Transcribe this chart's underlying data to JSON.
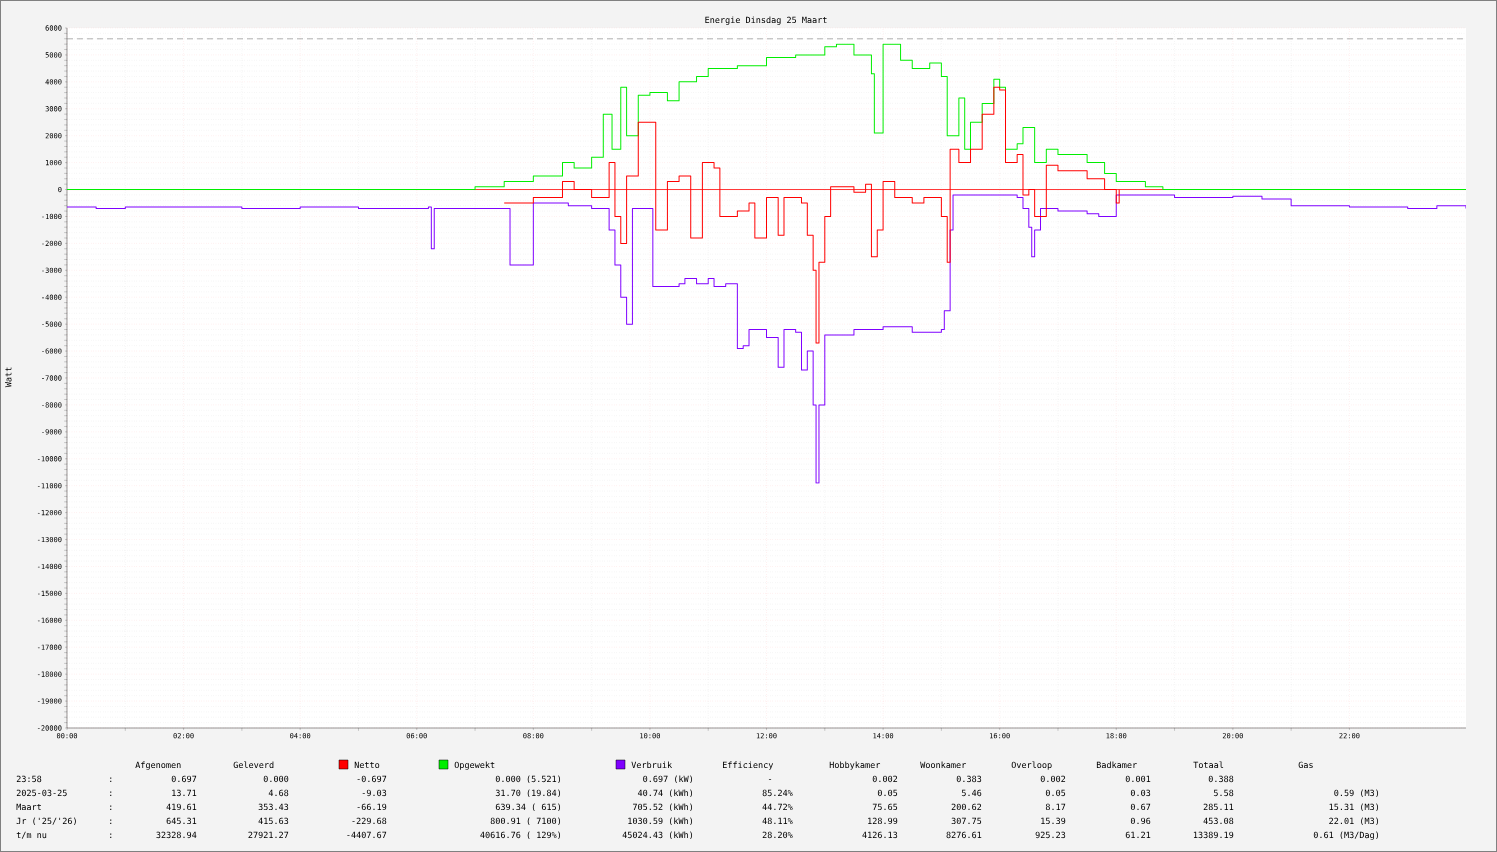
{
  "chart_data": {
    "type": "step",
    "title": "Energie Dinsdag   25 Maart",
    "ylabel": "Watt",
    "xlim": [
      0,
      24
    ],
    "ylim": [
      -20000,
      6000
    ],
    "xticks": [
      {
        "value": 0,
        "label": "00:00"
      },
      {
        "value": 2,
        "label": "02:00"
      },
      {
        "value": 4,
        "label": "04:00"
      },
      {
        "value": 6,
        "label": "06:00"
      },
      {
        "value": 8,
        "label": "08:00"
      },
      {
        "value": 10,
        "label": "10:00"
      },
      {
        "value": 12,
        "label": "12:00"
      },
      {
        "value": 14,
        "label": "14:00"
      },
      {
        "value": 16,
        "label": "16:00"
      },
      {
        "value": 18,
        "label": "18:00"
      },
      {
        "value": 20,
        "label": "20:00"
      },
      {
        "value": 22,
        "label": "22:00"
      }
    ],
    "yticks": [
      -20000,
      -19000,
      -18000,
      -17000,
      -16000,
      -15000,
      -14000,
      -13000,
      -12000,
      -11000,
      -10000,
      -9000,
      -8000,
      -7000,
      -6000,
      -5000,
      -4000,
      -3000,
      -2000,
      -1000,
      0,
      1000,
      2000,
      3000,
      4000,
      5000,
      6000
    ],
    "grid": true,
    "legend": "bottom",
    "ref_lines": [
      {
        "axis": "y",
        "value": 5600,
        "color": "#888888",
        "line_style": "dashed"
      },
      {
        "axis": "y",
        "value": 0,
        "color": "#ff0000",
        "line_style": "solid"
      }
    ],
    "series": [
      {
        "name": "Netto",
        "color": "#ff0000",
        "x": [
          7.5,
          8.0,
          8.5,
          8.7,
          9.0,
          9.3,
          9.4,
          9.5,
          9.6,
          9.8,
          10.0,
          10.1,
          10.3,
          10.5,
          10.7,
          10.9,
          11.1,
          11.2,
          11.5,
          11.7,
          11.8,
          12.0,
          12.2,
          12.3,
          12.6,
          12.7,
          12.8,
          12.85,
          12.9,
          13.0,
          13.1,
          13.5,
          13.7,
          13.8,
          13.9,
          14.0,
          14.2,
          14.5,
          14.7,
          15.0,
          15.1,
          15.15,
          15.3,
          15.5,
          15.7,
          15.9,
          16.0,
          16.1,
          16.3,
          16.4,
          16.5,
          16.6,
          16.8,
          17.0,
          17.5,
          17.8,
          18.0,
          18.05
        ],
        "values": [
          -500,
          -300,
          300,
          0,
          -300,
          1000,
          -1000,
          -2000,
          500,
          2500,
          2500,
          -1500,
          300,
          500,
          -1800,
          1000,
          800,
          -1000,
          -800,
          -500,
          -1800,
          -300,
          -1700,
          -300,
          -500,
          -1700,
          -3000,
          -5700,
          -2700,
          -1000,
          100,
          -100,
          200,
          -2500,
          -1500,
          300,
          -300,
          -500,
          -300,
          -1000,
          -2700,
          1500,
          1000,
          1500,
          2800,
          3800,
          3700,
          1000,
          1300,
          -200,
          0,
          -1000,
          900,
          700,
          400,
          0,
          -500,
          0
        ]
      },
      {
        "name": "Opgewekt",
        "color": "#00ee00",
        "x": [
          0,
          6.8,
          7.0,
          7.5,
          8.0,
          8.5,
          8.7,
          9.0,
          9.2,
          9.35,
          9.5,
          9.6,
          9.8,
          10.0,
          10.3,
          10.5,
          10.8,
          11.0,
          11.5,
          12.0,
          12.5,
          13.0,
          13.2,
          13.5,
          13.8,
          13.85,
          14.0,
          14.3,
          14.5,
          14.8,
          15.0,
          15.1,
          15.3,
          15.4,
          15.5,
          15.7,
          15.9,
          16.0,
          16.1,
          16.3,
          16.4,
          16.6,
          16.8,
          17.0,
          17.5,
          17.8,
          18.0,
          18.5,
          18.8,
          24
        ],
        "values": [
          0,
          0,
          100,
          300,
          500,
          1000,
          800,
          1200,
          2800,
          1500,
          3800,
          2000,
          3500,
          3600,
          3300,
          4000,
          4200,
          4500,
          4600,
          4900,
          5000,
          5300,
          5400,
          5000,
          4300,
          2100,
          5400,
          4800,
          4500,
          4700,
          4200,
          2000,
          3400,
          1500,
          2500,
          3200,
          4100,
          3800,
          1500,
          1700,
          2300,
          1000,
          1500,
          1300,
          1000,
          600,
          300,
          100,
          0,
          0
        ]
      },
      {
        "name": "Verbruik",
        "color": "#7f00ff",
        "x": [
          0,
          0.5,
          1,
          2,
          3,
          3.5,
          4,
          5,
          6,
          6.2,
          6.25,
          6.3,
          7,
          7.4,
          7.6,
          8.0,
          8.3,
          8.6,
          9.0,
          9.3,
          9.4,
          9.5,
          9.6,
          9.7,
          10.0,
          10.05,
          10.5,
          10.6,
          10.8,
          11.0,
          11.1,
          11.3,
          11.5,
          11.6,
          11.7,
          12.0,
          12.2,
          12.3,
          12.5,
          12.6,
          12.7,
          12.8,
          12.85,
          12.9,
          13.0,
          13.5,
          14.0,
          14.5,
          15.0,
          15.05,
          15.15,
          15.2,
          16.0,
          16.3,
          16.4,
          16.5,
          16.55,
          16.6,
          16.7,
          17.0,
          17.5,
          17.7,
          18.0,
          19.0,
          19.5,
          20.0,
          20.5,
          21.0,
          22.0,
          23.0,
          23.5,
          24
        ],
        "values": [
          -650,
          -700,
          -650,
          -650,
          -700,
          -700,
          -650,
          -700,
          -700,
          -650,
          -2200,
          -700,
          -700,
          -700,
          -2800,
          -500,
          -500,
          -600,
          -700,
          -1500,
          -2800,
          -4000,
          -5000,
          -700,
          -700,
          -3600,
          -3500,
          -3300,
          -3500,
          -3300,
          -3600,
          -3500,
          -5900,
          -5800,
          -5200,
          -5500,
          -6600,
          -5200,
          -5300,
          -6700,
          -6000,
          -8000,
          -10900,
          -8000,
          -5400,
          -5200,
          -5100,
          -5300,
          -5200,
          -4500,
          -1500,
          -200,
          -200,
          -300,
          -700,
          -1400,
          -2500,
          -1500,
          -700,
          -800,
          -900,
          -1000,
          -200,
          -300,
          -300,
          -250,
          -350,
          -600,
          -650,
          -700,
          -600,
          -700
        ]
      }
    ],
    "annotations": [
      "Afgenomen",
      "Geleverd",
      "Efficiency",
      "Hobbykamer",
      "Woonkamer",
      "Overloop",
      "Badkamer",
      "Totaal",
      "Gas",
      "23:58",
      ":",
      "0.697",
      "0.000",
      "-0.697",
      "0.000 (5.521)",
      "0.697 (kW)",
      "-",
      "0.002",
      "0.383",
      "0.002",
      "0.001",
      "0.388",
      "2025-03-25",
      ":",
      "13.71",
      "4.68",
      "-9.03",
      "31.70 (19.84)",
      "40.74 (kWh)",
      "85.24%",
      "0.05",
      "5.46",
      "0.05",
      "0.03",
      "5.58",
      "0.59 (M3)",
      "Maart",
      ":",
      "419.61",
      "353.43",
      "-66.19",
      "639.34 (  615)",
      "705.52 (kWh)",
      "44.72%",
      "75.65",
      "200.62",
      "8.17",
      "0.67",
      "285.11",
      "15.31 (M3)",
      "Jr ('25/'26)",
      ":",
      "645.31",
      "415.63",
      "-229.68",
      "800.91 ( 7100)",
      "1030.59 (kWh)",
      "48.11%",
      "128.99",
      "307.75",
      "15.39",
      "0.96",
      "453.08",
      "22.01 (M3)",
      "t/m nu",
      ":",
      "32328.94",
      "27921.27",
      "-4407.67",
      "40616.76 ( 129%)",
      "45024.43 (kWh)",
      "28.20%",
      "4126.13",
      "8276.61",
      "925.23",
      "61.21",
      "13389.19",
      "0.61 (M3/Dag)"
    ]
  }
}
